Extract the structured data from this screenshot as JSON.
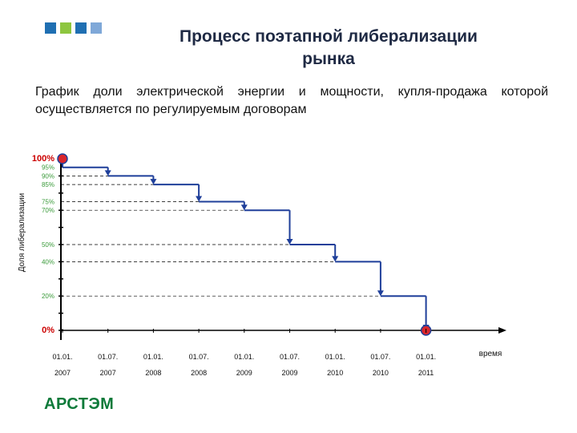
{
  "header": {
    "title_line1": "Процесс поэтапной либерализации",
    "title_line2": "рынка",
    "subtitle": "График доли электрической энергии и мощности, купля-продажа которой осуществляется по регулируемым договорам"
  },
  "logo": {
    "text": "АРСТЭМ",
    "squares": [
      "#1f6fb2",
      "#8dc63f",
      "#1f6fb2",
      "#7fa8d8"
    ]
  },
  "colors": {
    "step": "#1f3f9a",
    "marker_fill": "#d9262c",
    "marker_ring": "#1f3f9a",
    "level_label": "#3a9a3a",
    "end_label": "#cc0000"
  },
  "chart_data": {
    "type": "line",
    "title": "",
    "xlabel": "время",
    "ylabel": "Доля либерализации",
    "x_ticks": [
      {
        "line1": "01.01.",
        "line2": "2007"
      },
      {
        "line1": "01.07.",
        "line2": "2007"
      },
      {
        "line1": "01.01.",
        "line2": "2008"
      },
      {
        "line1": "01.07.",
        "line2": "2008"
      },
      {
        "line1": "01.01.",
        "line2": "2009"
      },
      {
        "line1": "01.07.",
        "line2": "2009"
      },
      {
        "line1": "01.01.",
        "line2": "2010"
      },
      {
        "line1": "01.07.",
        "line2": "2010"
      },
      {
        "line1": "01.01.",
        "line2": "2011"
      }
    ],
    "y_levels": [
      {
        "value": 100,
        "label": "100%"
      },
      {
        "value": 95,
        "label": "95%"
      },
      {
        "value": 90,
        "label": "90%"
      },
      {
        "value": 85,
        "label": "85%"
      },
      {
        "value": 75,
        "label": "75%"
      },
      {
        "value": 70,
        "label": "70%"
      },
      {
        "value": 50,
        "label": "50%"
      },
      {
        "value": 40,
        "label": "40%"
      },
      {
        "value": 20,
        "label": "20%"
      },
      {
        "value": 0,
        "label": "0%"
      }
    ],
    "series": [
      {
        "steps": [
          {
            "x_index": 0,
            "value": 95
          },
          {
            "x_index": 1,
            "value": 90
          },
          {
            "x_index": 2,
            "value": 85
          },
          {
            "x_index": 3,
            "value": 75
          },
          {
            "x_index": 4,
            "value": 70
          },
          {
            "x_index": 5,
            "value": 50
          },
          {
            "x_index": 6,
            "value": 40
          },
          {
            "x_index": 7,
            "value": 20
          },
          {
            "x_index": 8,
            "value": 0
          }
        ],
        "start": {
          "x_index": 0,
          "value": 100
        }
      }
    ],
    "ylim": [
      0,
      100
    ],
    "grid": "dashed horizontal"
  }
}
